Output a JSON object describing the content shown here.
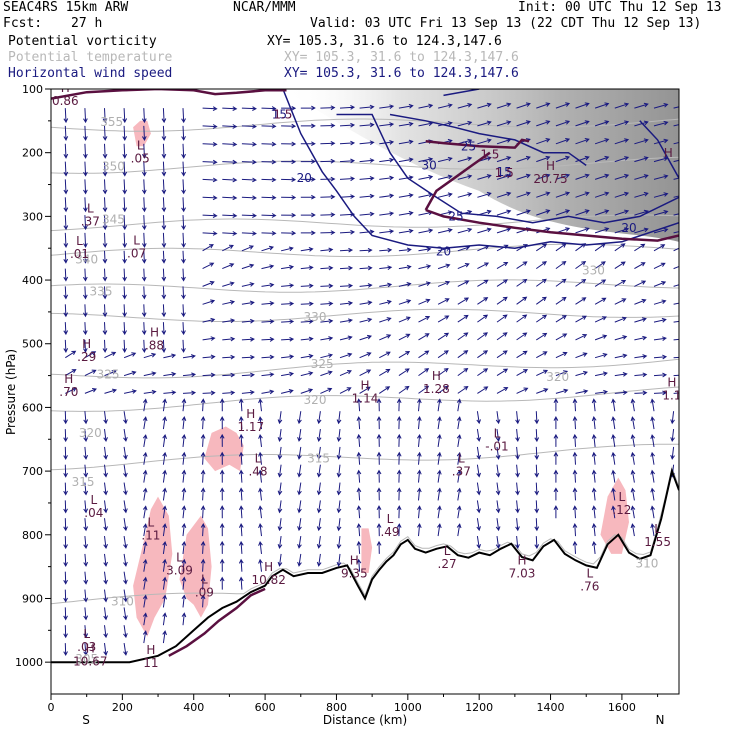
{
  "header": {
    "model": "SEAC4RS 15km ARW",
    "org": "NCAR/MMM",
    "init": "Init: 00 UTC Thu 12 Sep 13",
    "fcst_label": "Fcst:",
    "fcst_value": "27 h",
    "valid": "Valid: 03 UTC Fri 13 Sep 13 (22 CDT Thu 12 Sep 13)",
    "fields": [
      {
        "name": "Potential vorticity",
        "xy": "XY= 105.3, 31.6 to 124.3,147.6",
        "color": "#000000"
      },
      {
        "name": "Potential temperature",
        "xy": "XY= 105.3, 31.6 to 124.3,147.6",
        "color": "#b8b8b8"
      },
      {
        "name": "Horizontal wind speed",
        "xy": "XY= 105.3, 31.6 to 124.3,147.6",
        "color": "#1a1a80"
      }
    ]
  },
  "chart_data": {
    "type": "cross-section",
    "xlabel": "Distance (km)",
    "ylabel": "Pressure (hPa)",
    "xlim": [
      0,
      1760
    ],
    "ylim": [
      1050,
      100
    ],
    "x_ticks": [
      0,
      200,
      400,
      600,
      800,
      1000,
      1200,
      1400,
      1600
    ],
    "y_ticks": [
      100,
      200,
      300,
      400,
      500,
      600,
      700,
      800,
      900,
      1000
    ],
    "end_labels": {
      "left": "S",
      "right": "N"
    },
    "terrain": {
      "x": [
        0,
        220,
        300,
        350,
        400,
        440,
        480,
        520,
        560,
        600,
        620,
        650,
        680,
        720,
        760,
        800,
        830,
        860,
        880,
        900,
        920,
        940,
        960,
        980,
        1000,
        1020,
        1050,
        1080,
        1110,
        1140,
        1170,
        1200,
        1230,
        1260,
        1290,
        1320,
        1350,
        1380,
        1410,
        1440,
        1470,
        1500,
        1530,
        1560,
        1590,
        1620,
        1650,
        1680,
        1710,
        1740,
        1760
      ],
      "p": [
        1000,
        1000,
        990,
        975,
        950,
        930,
        915,
        905,
        890,
        880,
        865,
        855,
        865,
        860,
        860,
        852,
        848,
        880,
        900,
        870,
        855,
        842,
        832,
        815,
        808,
        822,
        828,
        822,
        818,
        832,
        836,
        828,
        832,
        822,
        814,
        835,
        840,
        818,
        808,
        830,
        840,
        848,
        852,
        815,
        800,
        828,
        838,
        832,
        775,
        700,
        730
      ]
    },
    "theta_contours": [
      {
        "value": "355",
        "p": 160
      },
      {
        "value": "350",
        "p": 225
      },
      {
        "value": "345",
        "p": 315
      },
      {
        "value": "340",
        "p": 360
      },
      {
        "value": "335",
        "p": 415
      },
      {
        "value": "330",
        "p": 460
      },
      {
        "value": "325",
        "p": 550
      },
      {
        "value": "320",
        "p": 600
      },
      {
        "value": "315",
        "p": 690
      },
      {
        "value": "310",
        "p": 905
      }
    ],
    "theta_labels": [
      {
        "text": "355",
        "x": 170,
        "p": 152
      },
      {
        "text": "350",
        "x": 175,
        "p": 222
      },
      {
        "text": "345",
        "x": 175,
        "p": 305
      },
      {
        "text": "340",
        "x": 100,
        "p": 368
      },
      {
        "text": "335",
        "x": 140,
        "p": 418
      },
      {
        "text": "330",
        "x": 740,
        "p": 458
      },
      {
        "text": "325",
        "x": 160,
        "p": 548
      },
      {
        "text": "320",
        "x": 110,
        "p": 640
      },
      {
        "text": "315",
        "x": 90,
        "p": 717
      },
      {
        "text": "310",
        "x": 200,
        "p": 905
      },
      {
        "text": "305",
        "x": 100,
        "p": 995
      },
      {
        "text": "330",
        "x": 1520,
        "p": 385
      },
      {
        "text": "325",
        "x": 760,
        "p": 532
      },
      {
        "text": "320",
        "x": 1420,
        "p": 552
      },
      {
        "text": "320",
        "x": 740,
        "p": 588
      },
      {
        "text": "315",
        "x": 750,
        "p": 680
      },
      {
        "text": "310",
        "x": 1670,
        "p": 845
      }
    ],
    "wind_speed_labels": [
      {
        "text": "25",
        "x": 1170,
        "p": 190
      },
      {
        "text": "20",
        "x": 1100,
        "p": 355
      },
      {
        "text": "20",
        "x": 1620,
        "p": 318
      },
      {
        "text": "20",
        "x": 710,
        "p": 240
      },
      {
        "text": "25",
        "x": 1135,
        "p": 300
      },
      {
        "text": "15",
        "x": 1270,
        "p": 230
      },
      {
        "text": "15",
        "x": 640,
        "p": 140
      },
      {
        "text": "30",
        "x": 1060,
        "p": 220
      }
    ],
    "pv_labels": [
      {
        "text": "1.5",
        "x": 650,
        "p": 140
      },
      {
        "text": "1.5",
        "x": 1270,
        "p": 232
      },
      {
        "text": "1.5",
        "x": 1230,
        "p": 203
      }
    ],
    "extrema": [
      {
        "type": "H",
        "value": "0.86",
        "x": 40,
        "p": 108
      },
      {
        "type": "L",
        "value": ".05",
        "x": 250,
        "p": 198
      },
      {
        "type": "L",
        "value": ".37",
        "x": 110,
        "p": 297
      },
      {
        "type": "L",
        "value": ".07",
        "x": 240,
        "p": 347
      },
      {
        "type": "L",
        "value": ".01",
        "x": 80,
        "p": 348
      },
      {
        "type": "H",
        "value": "20.75",
        "x": 1400,
        "p": 230
      },
      {
        "type": "H",
        "value": "H",
        "x": 1730,
        "p": 210
      },
      {
        "type": "H",
        "value": ".29",
        "x": 100,
        "p": 510
      },
      {
        "type": "H",
        "value": ".88",
        "x": 290,
        "p": 492
      },
      {
        "type": "H",
        "value": ".70",
        "x": 50,
        "p": 565
      },
      {
        "type": "H",
        "value": "1.28",
        "x": 1080,
        "p": 560
      },
      {
        "type": "H",
        "value": "1.14",
        "x": 880,
        "p": 575
      },
      {
        "type": "H",
        "value": "1.1",
        "x": 1740,
        "p": 570
      },
      {
        "type": "H",
        "value": "1.17",
        "x": 560,
        "p": 620
      },
      {
        "type": "L",
        "value": "-.01",
        "x": 1250,
        "p": 650
      },
      {
        "type": "L",
        "value": ".48",
        "x": 580,
        "p": 690
      },
      {
        "type": "L",
        "value": ".37",
        "x": 1150,
        "p": 690
      },
      {
        "type": "L",
        "value": ".04",
        "x": 120,
        "p": 755
      },
      {
        "type": "L",
        "value": ".12",
        "x": 1600,
        "p": 750
      },
      {
        "type": "L",
        "value": ".11",
        "x": 280,
        "p": 790
      },
      {
        "type": "L",
        "value": ".49",
        "x": 950,
        "p": 785
      },
      {
        "type": "L",
        "value": "1.55",
        "x": 1700,
        "p": 800
      },
      {
        "type": "L",
        "value": ".27",
        "x": 1110,
        "p": 835
      },
      {
        "type": "L",
        "value": "3.09",
        "x": 360,
        "p": 845
      },
      {
        "type": "H",
        "value": "10.82",
        "x": 610,
        "p": 860
      },
      {
        "type": "H",
        "value": "9.35",
        "x": 850,
        "p": 850
      },
      {
        "type": "H",
        "value": "7.03",
        "x": 1320,
        "p": 850
      },
      {
        "type": "L",
        "value": ".76",
        "x": 1510,
        "p": 870
      },
      {
        "type": "L",
        "value": ".09",
        "x": 430,
        "p": 880
      },
      {
        "type": "L",
        "value": ".03",
        "x": 100,
        "p": 965
      },
      {
        "type": "H",
        "value": "11",
        "x": 280,
        "p": 990
      },
      {
        "type": "H",
        "value": "10.67",
        "x": 110,
        "p": 988
      }
    ],
    "pv_fill_regions": [
      {
        "x": [
          230,
          260,
          280,
          300,
          330,
          340,
          320,
          290,
          270,
          240,
          230
        ],
        "p": [
          880,
          810,
          760,
          740,
          770,
          830,
          900,
          930,
          960,
          930,
          880
        ]
      },
      {
        "x": [
          360,
          380,
          420,
          440,
          450,
          440,
          420,
          400,
          380,
          360
        ],
        "p": [
          870,
          800,
          770,
          790,
          850,
          910,
          930,
          910,
          900,
          870
        ]
      },
      {
        "x": [
          430,
          450,
          490,
          520,
          540,
          530,
          500,
          460,
          430
        ],
        "p": [
          680,
          640,
          630,
          640,
          660,
          700,
          690,
          700,
          680
        ]
      },
      {
        "x": [
          1540,
          1560,
          1590,
          1610,
          1620,
          1600,
          1570,
          1540
        ],
        "p": [
          800,
          740,
          710,
          730,
          780,
          830,
          830,
          800
        ]
      },
      {
        "x": [
          230,
          250,
          270,
          280,
          260,
          240,
          230
        ],
        "p": [
          160,
          150,
          150,
          170,
          190,
          190,
          160
        ]
      },
      {
        "x": [
          870,
          890,
          900,
          890,
          870,
          870
        ],
        "p": [
          790,
          790,
          820,
          860,
          860,
          790
        ]
      }
    ]
  }
}
